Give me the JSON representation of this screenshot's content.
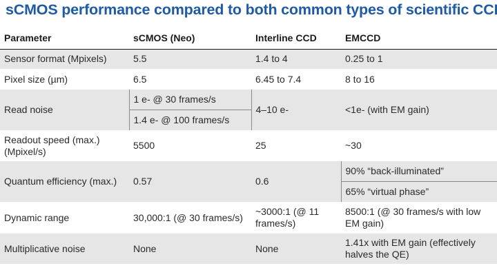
{
  "title": "sCMOS performance compared to both common types of scientific CCDs",
  "headers": [
    "Parameter",
    "sCMOS (Neo)",
    "Interline CCD",
    "EMCCD"
  ],
  "rows": {
    "sensor_format": {
      "param": "Sensor format (Mpixels)",
      "scmos": "5.5",
      "interline": "1.4 to 4",
      "emccd": "0.25 to 1"
    },
    "pixel_size": {
      "param": "Pixel size (µm)",
      "scmos": "6.5",
      "interline": "6.45 to 7.4",
      "emccd": "8 to 16"
    },
    "read_noise": {
      "param": "Read noise",
      "scmos_a": "1 e- @ 30 frames/s",
      "scmos_b": "1.4 e- @ 100 frames/s",
      "interline": "4–10 e-",
      "emccd": "<1e- (with EM gain)"
    },
    "readout_speed": {
      "param": "Readout speed (max.) (Mpixel/s)",
      "scmos": "5500",
      "interline": "25",
      "emccd": "~30"
    },
    "quantum_efficiency": {
      "param": "Quantum efficiency (max.)",
      "scmos": "0.57",
      "interline": "0.6",
      "emccd_a": "90% “back-illuminated”",
      "emccd_b": "65% “virtual phase”"
    },
    "dynamic_range": {
      "param": "Dynamic range",
      "scmos": "30,000:1 (@ 30 frames/s)",
      "interline": "~3000:1 (@ 11 frames/s)",
      "emccd": "8500:1 (@ 30 frames/s with low EM gain)"
    },
    "multiplicative_noise": {
      "param": "Multiplicative noise",
      "scmos": "None",
      "interline": "None",
      "emccd": "1.41x with EM gain (effectively halves the QE)"
    }
  }
}
